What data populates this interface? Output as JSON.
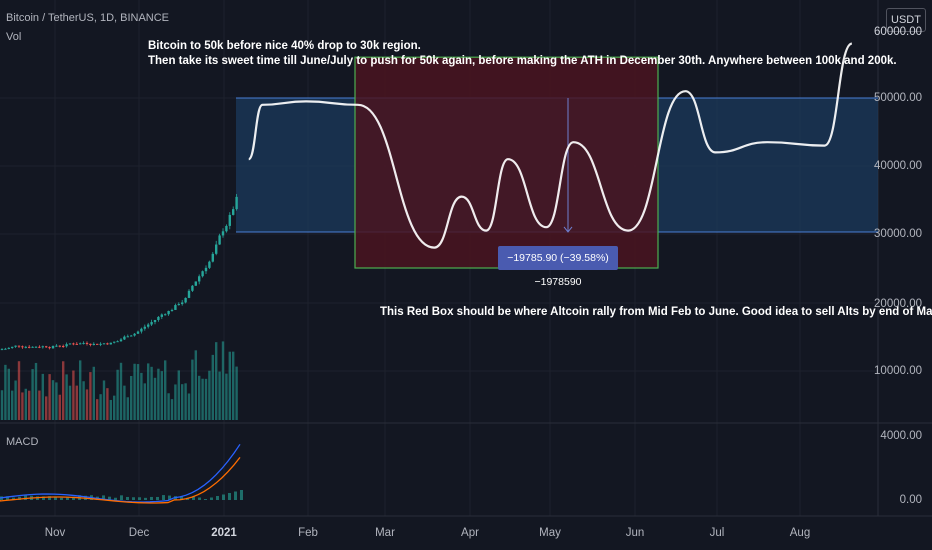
{
  "header": {
    "symbol_title": "Bitcoin / TetherUS, 1D, BINANCE",
    "volume_label": "Vol",
    "currency_button": "USDT"
  },
  "annotations": {
    "top_note_line1": "Bitcoin to 50k before nice 40% drop to 30k region.",
    "top_note_line2": "Then take its sweet time till June/July to push for 50k again, before making the ATH in December 30th.  Anywhere between 100k and 200k.",
    "red_box_note": "This Red Box should be where Altcoin rally from Mid Feb to June.  Good idea to sell Alts by end of May",
    "measure_label": "−19785.90 (−39.58%) −1978590"
  },
  "price_axis": {
    "labels": [
      "50000.00",
      "40000.00",
      "30000.00",
      "20000.00",
      "10000.00"
    ],
    "top_partial_label": "60000.00"
  },
  "macd": {
    "label": "MACD",
    "axis_labels": [
      "4000.00",
      "0.00"
    ]
  },
  "time_axis": {
    "labels": [
      "Nov",
      "Dec",
      "2021",
      "Feb",
      "Mar",
      "Apr",
      "May",
      "Jun",
      "Jul",
      "Aug"
    ]
  },
  "colors": {
    "background": "#131722",
    "grid": "#1e222d",
    "up_candle": "#26a69a",
    "down_candle": "#ef5350",
    "projection_path": "#ffffff",
    "blue_box_fill": "#1b3a5c",
    "blue_box_line": "#4a7fd6",
    "red_box_fill": "#4a1420",
    "red_box_border": "#4caf50",
    "macd_line": "#2962ff",
    "signal_line": "#ff6d00"
  },
  "chart_data": {
    "type": "candlestick",
    "projected_path_key_points": [
      {
        "x": "2021-01-11",
        "y": 41000
      },
      {
        "x": "2021-01-16",
        "y": 49000
      },
      {
        "x": "2021-02-01",
        "y": 49500
      },
      {
        "x": "2021-02-20",
        "y": 49000
      },
      {
        "x": "2021-03-20",
        "y": 28000
      },
      {
        "x": "2021-03-30",
        "y": 35500
      },
      {
        "x": "2021-04-08",
        "y": 30500
      },
      {
        "x": "2021-04-16",
        "y": 41000
      },
      {
        "x": "2021-04-30",
        "y": 31000
      },
      {
        "x": "2021-05-10",
        "y": 43500
      },
      {
        "x": "2021-05-30",
        "y": 30500
      },
      {
        "x": "2021-06-20",
        "y": 51000
      },
      {
        "x": "2021-07-01",
        "y": 42000
      },
      {
        "x": "2021-07-20",
        "y": 43500
      },
      {
        "x": "2021-08-10",
        "y": 43000
      },
      {
        "x": "2021-08-20",
        "y": 58000
      }
    ],
    "blue_box_range": [
      30300,
      50000
    ],
    "red_box_range": [
      25000,
      56000
    ],
    "measured_change": -19785.9,
    "measured_change_percent": -39.58
  }
}
